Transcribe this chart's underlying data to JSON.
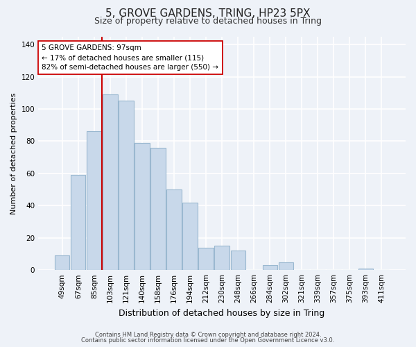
{
  "title": "5, GROVE GARDENS, TRING, HP23 5PX",
  "subtitle": "Size of property relative to detached houses in Tring",
  "xlabel": "Distribution of detached houses by size in Tring",
  "ylabel": "Number of detached properties",
  "bar_labels": [
    "49sqm",
    "67sqm",
    "85sqm",
    "103sqm",
    "121sqm",
    "140sqm",
    "158sqm",
    "176sqm",
    "194sqm",
    "212sqm",
    "230sqm",
    "248sqm",
    "266sqm",
    "284sqm",
    "302sqm",
    "321sqm",
    "339sqm",
    "357sqm",
    "375sqm",
    "393sqm",
    "411sqm"
  ],
  "bar_values": [
    9,
    59,
    86,
    109,
    105,
    79,
    76,
    50,
    42,
    14,
    15,
    12,
    0,
    3,
    5,
    0,
    0,
    0,
    0,
    1,
    0
  ],
  "bar_color": "#c8d8ea",
  "bar_edge_color": "#9ab8d0",
  "vline_color": "#cc0000",
  "annotation_text": "5 GROVE GARDENS: 97sqm\n← 17% of detached houses are smaller (115)\n82% of semi-detached houses are larger (550) →",
  "annotation_box_color": "#ffffff",
  "annotation_box_edge": "#cc0000",
  "ylim": [
    0,
    145
  ],
  "yticks": [
    0,
    20,
    40,
    60,
    80,
    100,
    120,
    140
  ],
  "footer1": "Contains HM Land Registry data © Crown copyright and database right 2024.",
  "footer2": "Contains public sector information licensed under the Open Government Licence v3.0.",
  "bg_color": "#eef2f8",
  "plot_bg_color": "#eef2f8",
  "grid_color": "#ffffff",
  "title_fontsize": 11,
  "subtitle_fontsize": 9,
  "ylabel_fontsize": 8,
  "xlabel_fontsize": 9,
  "tick_fontsize": 7.5,
  "footer_fontsize": 6.0
}
